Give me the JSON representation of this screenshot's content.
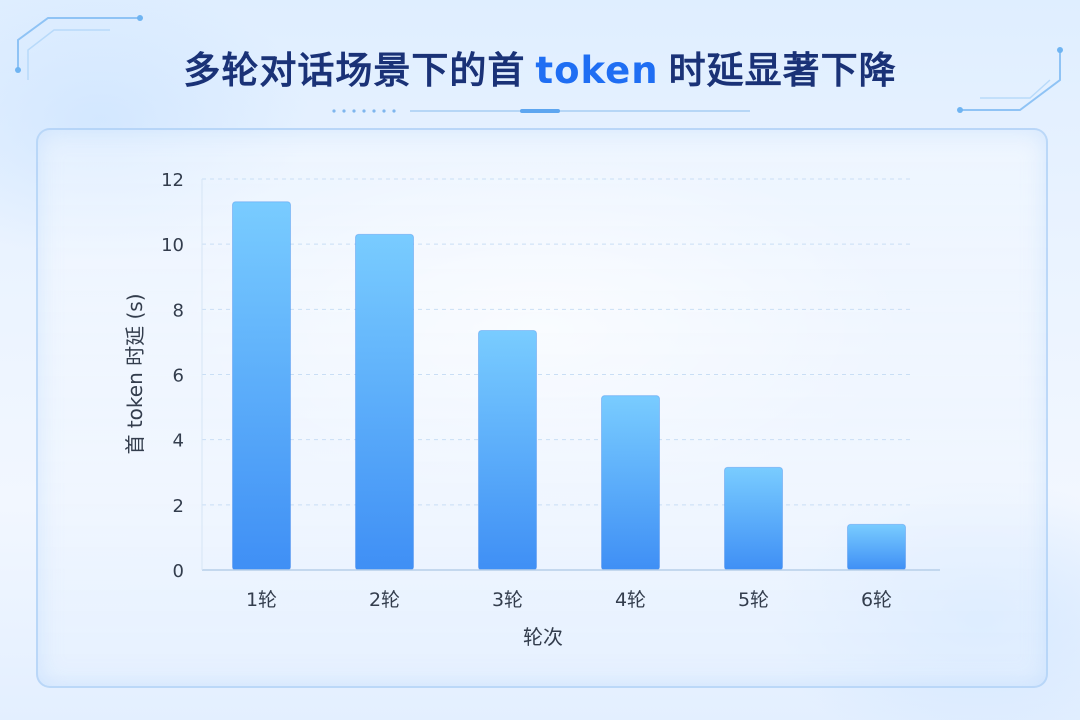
{
  "title": {
    "part1": "多轮对话场景下的首",
    "highlight": "token",
    "part2": "时延显著下降"
  },
  "colors": {
    "title": "#1a3277",
    "highlight": "#1f6ef3",
    "bar_top": "#79ccff",
    "bar_bottom": "#3f8ff5",
    "axis_text": "#333d4d",
    "grid": "#c9def5"
  },
  "chart_data": {
    "type": "bar",
    "categories": [
      "1轮",
      "2轮",
      "3轮",
      "4轮",
      "5轮",
      "6轮"
    ],
    "values": [
      11.3,
      10.3,
      7.35,
      5.35,
      3.15,
      1.4
    ],
    "xlabel": "轮次",
    "ylabel": "首 token 时延 (s)",
    "ylim": [
      0,
      12
    ],
    "yticks": [
      0,
      2,
      4,
      6,
      8,
      10,
      12
    ],
    "grid": true,
    "legend": "none"
  }
}
